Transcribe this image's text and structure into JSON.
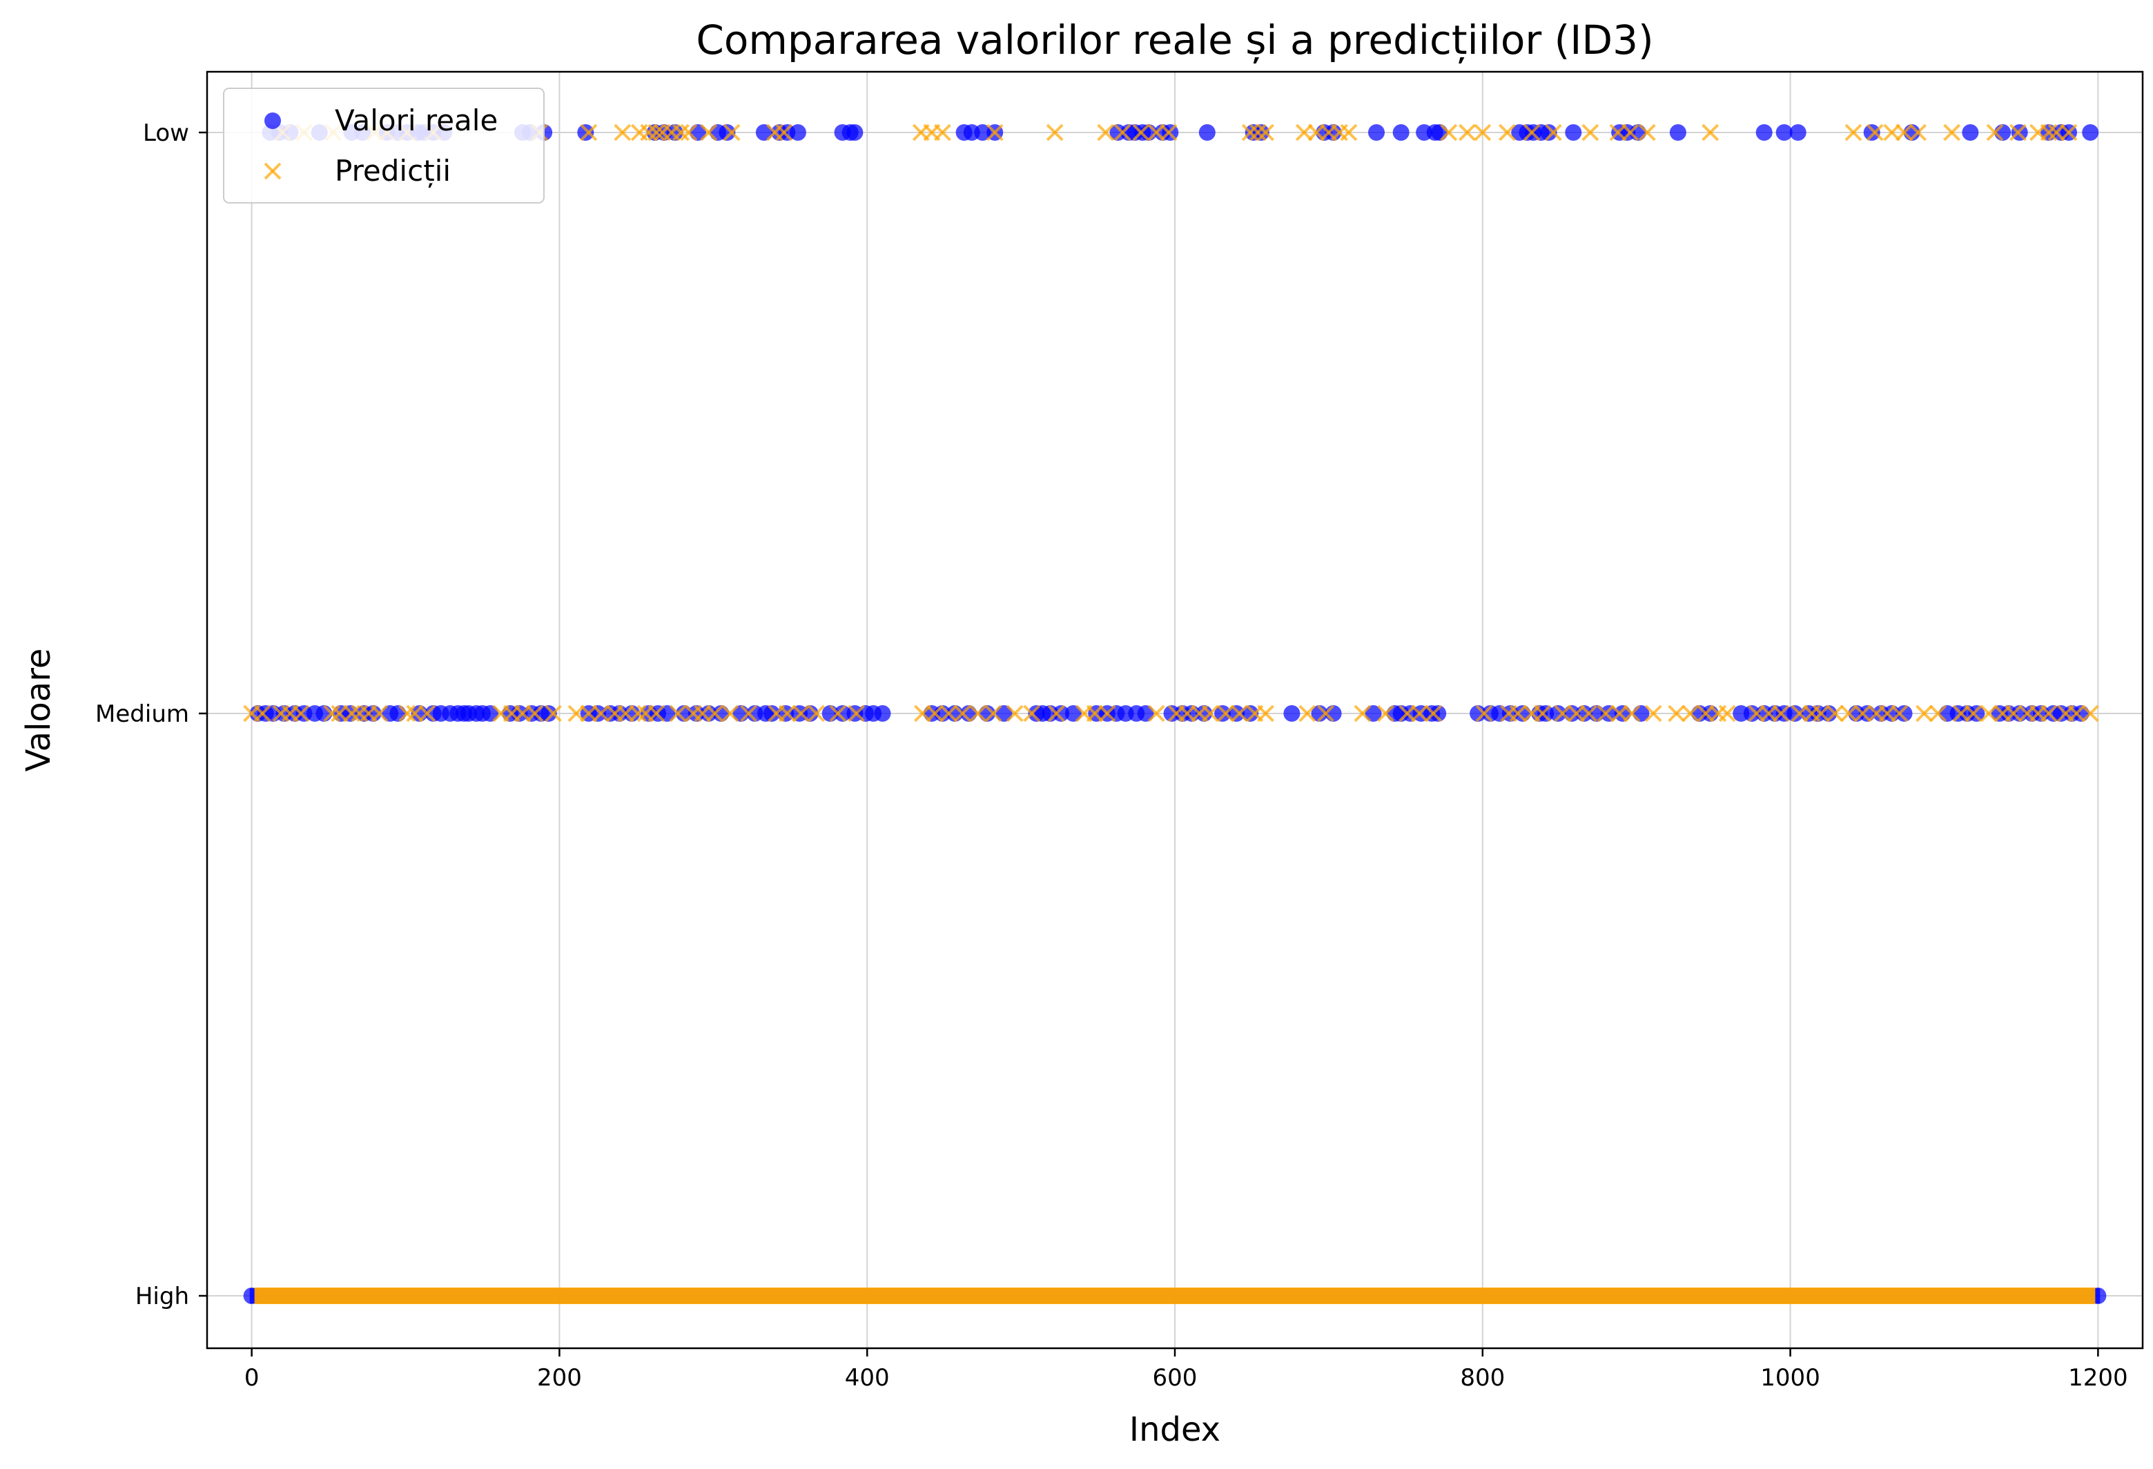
{
  "chart_data": {
    "type": "scatter",
    "title": "Compararea valorilor reale și a predicțiilor (ID3)",
    "xlabel": "Index",
    "ylabel": "Valoare",
    "xlim": [
      -29,
      1229
    ],
    "x_ticks": [
      0,
      200,
      400,
      600,
      800,
      1000,
      1200
    ],
    "x_tick_labels": [
      "0",
      "200",
      "400",
      "600",
      "800",
      "1000",
      "1200"
    ],
    "categories": [
      "High",
      "Medium",
      "Low"
    ],
    "grid": true,
    "legend_position": "top-left",
    "series": [
      {
        "name": "Valori reale",
        "marker": "circle",
        "color": "#0000ff",
        "dense_category": "High",
        "dense_range": [
          0,
          1200
        ],
        "sparse": {
          "Low": [
            12,
            18,
            25,
            44,
            65,
            72,
            88,
            95,
            101,
            108,
            112,
            118,
            125,
            176,
            181,
            190,
            217,
            262,
            268,
            275,
            290,
            303,
            309,
            333,
            343,
            348,
            355,
            384,
            389,
            392,
            463,
            468,
            475,
            483,
            563,
            570,
            574,
            579,
            583,
            592,
            597,
            621,
            651,
            656,
            697,
            703,
            731,
            747,
            762,
            769,
            772,
            824,
            829,
            833,
            838,
            843,
            859,
            889,
            894,
            901,
            927,
            983,
            996,
            1005,
            1053,
            1079,
            1117,
            1138,
            1149,
            1168,
            1176,
            1181,
            1195
          ],
          "Medium": [
            4,
            9,
            14,
            21,
            28,
            34,
            41,
            47,
            58,
            64,
            73,
            79,
            90,
            95,
            109,
            118,
            123,
            129,
            134,
            138,
            141,
            146,
            150,
            155,
            168,
            174,
            182,
            188,
            193,
            219,
            225,
            233,
            239,
            247,
            258,
            264,
            270,
            281,
            289,
            297,
            305,
            318,
            327,
            334,
            338,
            347,
            356,
            363,
            376,
            384,
            392,
            399,
            404,
            410,
            442,
            449,
            457,
            466,
            478,
            489,
            510,
            514,
            519,
            526,
            534,
            549,
            556,
            562,
            568,
            575,
            581,
            598,
            605,
            611,
            619,
            631,
            640,
            649,
            676,
            694,
            703,
            729,
            743,
            747,
            753,
            760,
            767,
            771,
            797,
            805,
            811,
            818,
            826,
            837,
            841,
            849,
            858,
            866,
            874,
            882,
            891,
            903,
            941,
            948,
            968,
            975,
            983,
            990,
            996,
            1003,
            1012,
            1018,
            1025,
            1043,
            1050,
            1059,
            1066,
            1074,
            1102,
            1109,
            1115,
            1121,
            1136,
            1142,
            1149,
            1157,
            1163,
            1171,
            1176,
            1183,
            1189
          ]
        }
      },
      {
        "name": "Predicții",
        "marker": "x",
        "color": "#ffa500",
        "dense_category": "High",
        "dense_range": [
          0,
          1200
        ],
        "sparse": {
          "Low": [
            20,
            34,
            53,
            80,
            88,
            101,
            118,
            187,
            219,
            241,
            252,
            258,
            263,
            267,
            273,
            279,
            284,
            297,
            312,
            340,
            346,
            435,
            442,
            449,
            483,
            522,
            555,
            566,
            578,
            588,
            596,
            649,
            654,
            659,
            684,
            692,
            700,
            707,
            713,
            778,
            790,
            800,
            816,
            832,
            846,
            870,
            888,
            896,
            907,
            948,
            1041,
            1055,
            1066,
            1074,
            1083,
            1105,
            1133,
            1148,
            1161,
            1168,
            1173,
            1181
          ],
          "Medium": [
            0,
            7,
            19,
            25,
            32,
            52,
            57,
            65,
            70,
            76,
            83,
            101,
            106,
            114,
            162,
            169,
            176,
            184,
            196,
            211,
            219,
            227,
            236,
            243,
            251,
            256,
            263,
            277,
            287,
            293,
            301,
            311,
            323,
            341,
            348,
            357,
            367,
            381,
            393,
            436,
            444,
            453,
            462,
            472,
            482,
            496,
            507,
            523,
            541,
            548,
            556,
            588,
            601,
            608,
            616,
            623,
            633,
            642,
            652,
            659,
            686,
            698,
            722,
            737,
            751,
            759,
            768,
            801,
            817,
            823,
            832,
            839,
            852,
            861,
            869,
            880,
            889,
            897,
            911,
            926,
            935,
            945,
            953,
            959,
            978,
            986,
            994,
            1006,
            1014,
            1020,
            1029,
            1038,
            1047,
            1056,
            1063,
            1071,
            1087,
            1096,
            1111,
            1119,
            1129,
            1138,
            1145,
            1154,
            1161,
            1168,
            1179,
            1186,
            1195
          ]
        }
      }
    ]
  }
}
